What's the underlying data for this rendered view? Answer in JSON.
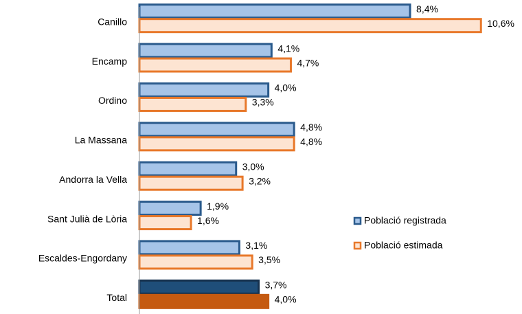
{
  "chart_data": {
    "type": "hbar",
    "categories": [
      "Canillo",
      "Encamp",
      "Ordino",
      "La Massana",
      "Andorra la Vella",
      "Sant Julià de Lòria",
      "Escaldes-Engordany",
      "Total"
    ],
    "series": [
      {
        "name": "Població registrada",
        "color": "#2a5a8c",
        "fills": [
          "#a6c4e8",
          "#a6c4e8",
          "#a6c4e8",
          "#a6c4e8",
          "#a6c4e8",
          "#a6c4e8",
          "#a6c4e8",
          "#1f4e79"
        ],
        "values": [
          8.4,
          4.1,
          4.0,
          4.8,
          3.0,
          1.9,
          3.1,
          3.7
        ],
        "value_labels": [
          "8,4%",
          "4,1%",
          "4,0%",
          "4,8%",
          "3,0%",
          "1,9%",
          "3,1%",
          "3,7%"
        ]
      },
      {
        "name": "Població estimada",
        "color": "#e8782a",
        "fills": [
          "#fde4d2",
          "#fde4d2",
          "#fde4d2",
          "#fde4d2",
          "#fde4d2",
          "#fde4d2",
          "#fde4d2",
          "#c55a11"
        ],
        "values": [
          10.6,
          4.7,
          3.3,
          4.8,
          3.2,
          1.6,
          3.5,
          4.0
        ],
        "value_labels": [
          "10,6%",
          "4,7%",
          "3,3%",
          "4,8%",
          "3,2%",
          "1,6%",
          "3,5%",
          "4,0%"
        ]
      }
    ],
    "xlim": [
      0,
      11
    ],
    "legend": "right"
  }
}
